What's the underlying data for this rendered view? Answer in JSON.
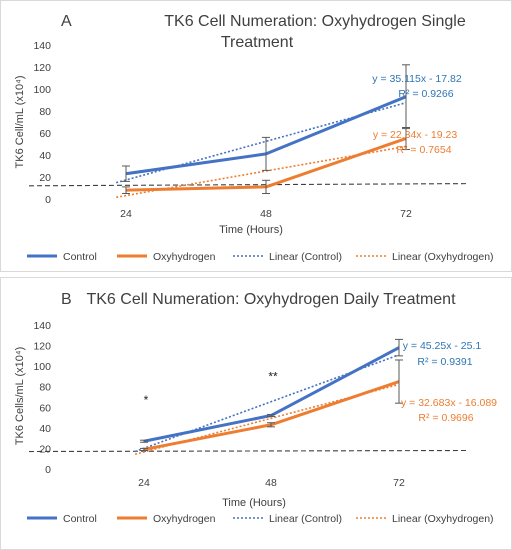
{
  "colors": {
    "control": "#4472c4",
    "oxyhydrogen": "#ed7d31",
    "eq_blue": "#2e75b6",
    "eq_orange": "#ed7d31",
    "axis": "#595959"
  },
  "legend": {
    "control": "Control",
    "oxyhydrogen": "Oxyhydrogen",
    "linear_control": "Linear (Control)",
    "linear_oxyhydrogen": "Linear (Oxyhydrogen)"
  },
  "chart_data": [
    {
      "type": "line",
      "panel_letter": "A",
      "title_line1": "TK6 Cell Numeration: Oxyhydrogen Single",
      "title_line2": "Treatment",
      "xlabel": "Time (Hours)",
      "ylabel": "TK6 Cell/mL (x10⁴)",
      "categories": [
        "24",
        "48",
        "72"
      ],
      "ylim": [
        0,
        140
      ],
      "y_ticks": [
        "0",
        "20",
        "40",
        "60",
        "80",
        "100",
        "120",
        "140"
      ],
      "series": [
        {
          "name": "Control",
          "values": [
            23,
            41,
            93
          ],
          "error": [
            7,
            15,
            29
          ]
        },
        {
          "name": "Oxyhydrogen",
          "values": [
            8,
            11,
            55
          ],
          "error": [
            3,
            6,
            10
          ]
        }
      ],
      "trendlines": [
        {
          "name": "Linear (Control)",
          "slope": 35.115,
          "intercept": -17.82,
          "equation": "y = 35.115x - 17.82",
          "r2": "R² = 0.9266"
        },
        {
          "name": "Linear (Oxyhydrogen)",
          "slope": 22.34,
          "intercept": -19.23,
          "equation": "y = 22.34x - 19.23",
          "r2": "R² = 0.7654"
        }
      ],
      "baseline": {
        "from": 12,
        "to": 14
      },
      "annotations": [],
      "legend_position": "bottom"
    },
    {
      "type": "line",
      "panel_letter": "B",
      "title_line1": "TK6 Cell Numeration: Oxyhydrogen Daily Treatment",
      "title_line2": "",
      "xlabel": "Time (Hours)",
      "ylabel": "TK6 Cells/mL (x10⁴)",
      "categories": [
        "24",
        "48",
        "72"
      ],
      "ylim": [
        0,
        140
      ],
      "y_ticks": [
        "0",
        "20",
        "40",
        "60",
        "80",
        "100",
        "120",
        "140"
      ],
      "series": [
        {
          "name": "Control",
          "values": [
            27,
            52,
            118
          ],
          "error": [
            1,
            1,
            8
          ]
        },
        {
          "name": "Oxyhydrogen",
          "values": [
            19,
            43,
            85
          ],
          "error": [
            1,
            2,
            21
          ]
        }
      ],
      "trendlines": [
        {
          "name": "Linear (Control)",
          "slope": 45.25,
          "intercept": -25.1,
          "equation": "y = 45.25x - 25.1",
          "r2": "R² = 0.9391"
        },
        {
          "name": "Linear (Oxyhydrogen)",
          "slope": 32.683,
          "intercept": -16.089,
          "equation": "y = 32.683x - 16.089",
          "r2": "R² = 0.9696"
        }
      ],
      "baseline": {
        "from": 17,
        "to": 18
      },
      "annotations": [
        {
          "text": "*",
          "category": "24"
        },
        {
          "text": "**",
          "category": "48"
        }
      ],
      "legend_position": "bottom"
    }
  ]
}
